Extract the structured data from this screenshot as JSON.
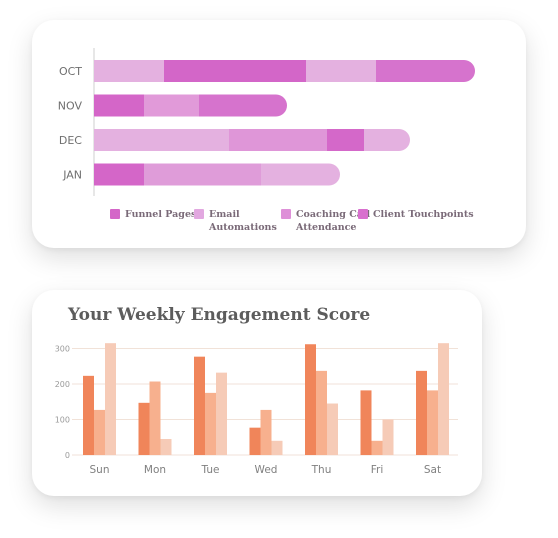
{
  "chart_data": [
    {
      "type": "bar",
      "orientation": "horizontal",
      "stacked": true,
      "categories": [
        "OCT",
        "NOV",
        "DEC",
        "JAN"
      ],
      "series": [
        {
          "name": "Funnel Pages",
          "values": [
            70,
            50,
            135,
            50
          ],
          "color": "#d466c8"
        },
        {
          "name": "Email Automations",
          "values": [
            142,
            55,
            98,
            117
          ],
          "color": "#e2a8e0"
        },
        {
          "name": "Coaching Call Attendance",
          "values": [
            70,
            88,
            37,
            79
          ],
          "color": "#de90d8"
        },
        {
          "name": "Client Touchpoints",
          "values": [
            99,
            0,
            46,
            0
          ],
          "color": "#d86fce"
        }
      ],
      "segment_colors": [
        [
          "#e4b1e0",
          "#d366c8",
          "#e4b1e0",
          "#d673cd"
        ],
        [
          "#d466c8",
          "#e19ad9",
          "#d673cd",
          null
        ],
        [
          "#e4b1e0",
          "#df96d8",
          "#d468c9",
          "#e4b1e0"
        ],
        [
          "#d466c8",
          "#df9cd9",
          "#e4b1e0",
          null
        ]
      ],
      "legend_labels": [
        "Funnel Pages",
        "Email\nAutomations",
        "Coaching Call\nAttendance",
        "Client Touchpoints"
      ]
    },
    {
      "type": "bar",
      "title": "Your Weekly Engagement Score",
      "categories": [
        "Sun",
        "Mon",
        "Tue",
        "Wed",
        "Thu",
        "Fri",
        "Sat"
      ],
      "series": [
        {
          "values": [
            223,
            147,
            277,
            77,
            312,
            182,
            237
          ],
          "color": "#f0855a"
        },
        {
          "values": [
            127,
            207,
            175,
            127,
            237,
            40,
            182
          ],
          "color": "#f7b08e"
        },
        {
          "values": [
            315,
            45,
            232,
            40,
            145,
            100,
            315
          ],
          "color": "#f6cbb7"
        }
      ],
      "yticks": [
        0,
        100,
        200,
        300
      ],
      "ylim": [
        0,
        300
      ],
      "grid": true
    }
  ]
}
